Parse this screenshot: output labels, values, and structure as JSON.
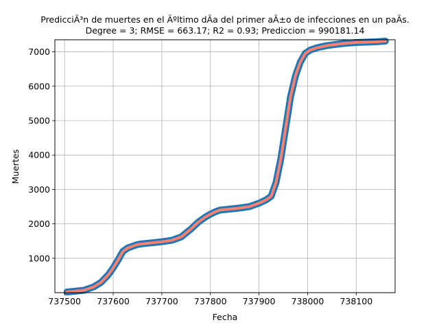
{
  "chart_data": {
    "type": "scatter",
    "title": "PredicciÃ³n de muertes en el Ãºltimo dÃ­a del primer aÃ±o de infecciones en un paÃ­s.",
    "subtitle": "Degree = 3; RMSE = 663.17; R2 = 0.93; Prediccion = 990181.14",
    "xlabel": "Fecha",
    "ylabel": "Muertes",
    "xlim": [
      737480,
      738180
    ],
    "ylim": [
      0,
      7350
    ],
    "xticks": [
      737500,
      737600,
      737700,
      737800,
      737900,
      738000,
      738100
    ],
    "yticks": [
      1000,
      2000,
      3000,
      4000,
      5000,
      6000,
      7000
    ],
    "grid": true,
    "colors": {
      "observed": "#1f77b4",
      "fit": "#fa8072"
    },
    "series": [
      {
        "kind": "observed",
        "x": [
          737505,
          737520,
          737540,
          737560,
          737575,
          737590,
          737600,
          737610,
          737620,
          737630,
          737640,
          737650,
          737660,
          737680,
          737700,
          737720,
          737740,
          737760,
          737775,
          737790,
          737800,
          737810,
          737820,
          737840,
          737860,
          737880,
          737900,
          737915,
          737925,
          737935,
          737945,
          737955,
          737965,
          737975,
          737985,
          737995,
          738005,
          738020,
          738040,
          738060,
          738080,
          738100,
          738120,
          738140,
          738160
        ],
        "y": [
          20,
          40,
          70,
          170,
          300,
          520,
          720,
          950,
          1200,
          1300,
          1350,
          1400,
          1420,
          1450,
          1480,
          1520,
          1620,
          1850,
          2050,
          2200,
          2280,
          2350,
          2400,
          2430,
          2460,
          2500,
          2600,
          2700,
          2800,
          3200,
          3900,
          4800,
          5700,
          6300,
          6700,
          6950,
          7050,
          7120,
          7180,
          7220,
          7250,
          7270,
          7280,
          7290,
          7310
        ]
      },
      {
        "kind": "fit",
        "x": [
          737505,
          737520,
          737540,
          737560,
          737575,
          737590,
          737600,
          737610,
          737620,
          737630,
          737640,
          737650,
          737660,
          737680,
          737700,
          737720,
          737740,
          737760,
          737775,
          737790,
          737800,
          737810,
          737820,
          737840,
          737860,
          737880,
          737900,
          737915,
          737925,
          737935,
          737945,
          737955,
          737965,
          737975,
          737985,
          737995,
          738005,
          738020,
          738040,
          738060,
          738080,
          738100,
          738120,
          738140,
          738160
        ],
        "y": [
          20,
          40,
          70,
          170,
          300,
          520,
          720,
          950,
          1200,
          1300,
          1350,
          1400,
          1420,
          1450,
          1480,
          1520,
          1620,
          1850,
          2050,
          2200,
          2280,
          2350,
          2400,
          2430,
          2460,
          2500,
          2600,
          2700,
          2800,
          3200,
          3900,
          4800,
          5700,
          6300,
          6700,
          6950,
          7050,
          7120,
          7180,
          7220,
          7250,
          7270,
          7280,
          7290,
          7310
        ]
      }
    ]
  }
}
